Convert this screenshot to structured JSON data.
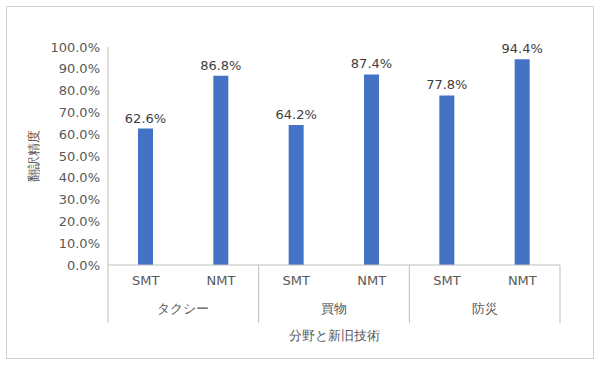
{
  "chart_data": {
    "type": "bar",
    "xlabel": "分野と新旧技術",
    "ylabel": "翻訳精度",
    "categories": [
      "SMT",
      "NMT",
      "SMT",
      "NMT",
      "SMT",
      "NMT"
    ],
    "category_groups": [
      "タクシー",
      "タクシー",
      "買物",
      "買物",
      "防災",
      "防災"
    ],
    "values": [
      62.6,
      86.8,
      64.2,
      87.4,
      77.8,
      94.4
    ],
    "value_labels": [
      "62.6%",
      "86.8%",
      "64.2%",
      "87.4%",
      "77.8%",
      "94.4%"
    ],
    "data_labels": true,
    "color": "#4472c4",
    "ylim": [
      0,
      100
    ],
    "yticks": [
      {
        "value": 0,
        "label": "0.0%"
      },
      {
        "value": 10,
        "label": "10.0%"
      },
      {
        "value": 20,
        "label": "20.0%"
      },
      {
        "value": 30,
        "label": "30.0%"
      },
      {
        "value": 40,
        "label": "40.0%"
      },
      {
        "value": 50,
        "label": "50.0%"
      },
      {
        "value": 60,
        "label": "60.0%"
      },
      {
        "value": 70,
        "label": "70.0%"
      },
      {
        "value": 80,
        "label": "80.0%"
      },
      {
        "value": 90,
        "label": "90.0%"
      },
      {
        "value": 100,
        "label": "100.0%"
      }
    ],
    "grid": false
  }
}
